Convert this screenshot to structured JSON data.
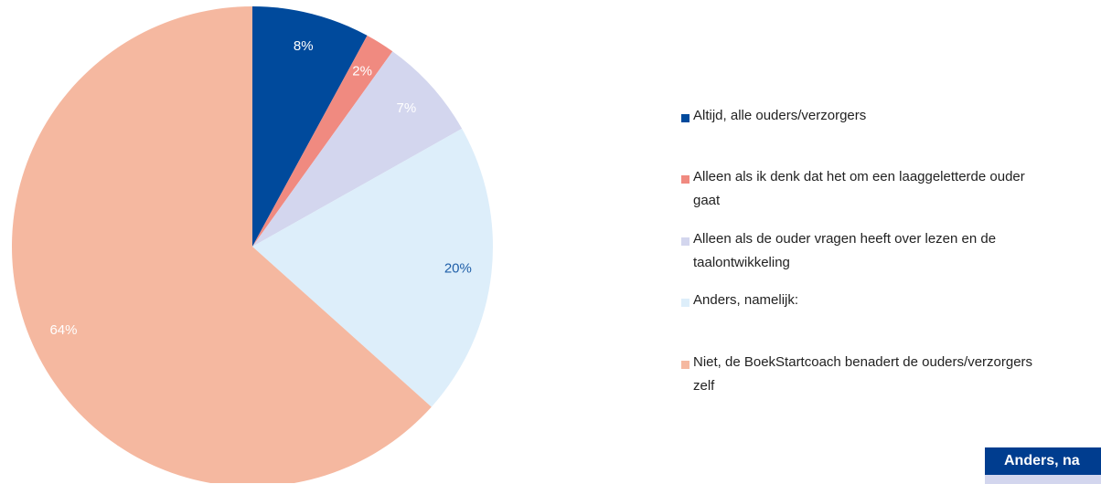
{
  "chart_data": {
    "type": "pie",
    "categories": [
      "Altijd, alle ouders/verzorgers",
      "Alleen als ik denk dat het om een laaggeletterde ouder gaat",
      "Alleen als de ouder vragen heeft over lezen en de taalontwikkeling",
      "Anders, namelijk:",
      "Niet, de BoekStartcoach benadert de ouders/verzorgers zelf"
    ],
    "values": [
      8,
      2,
      7,
      20,
      64
    ],
    "value_labels": [
      "8%",
      "2%",
      "7%",
      "20%",
      "64%"
    ],
    "colors": [
      "#004a9c",
      "#f08a80",
      "#d3d6ee",
      "#ddeefa",
      "#f5b8a0"
    ],
    "label_colors": [
      "#ffffff",
      "#ffffff",
      "#ffffff",
      "#1f5fa8",
      "#ffffff"
    ],
    "legend": "right"
  },
  "panel": {
    "title": "Anders, na"
  }
}
